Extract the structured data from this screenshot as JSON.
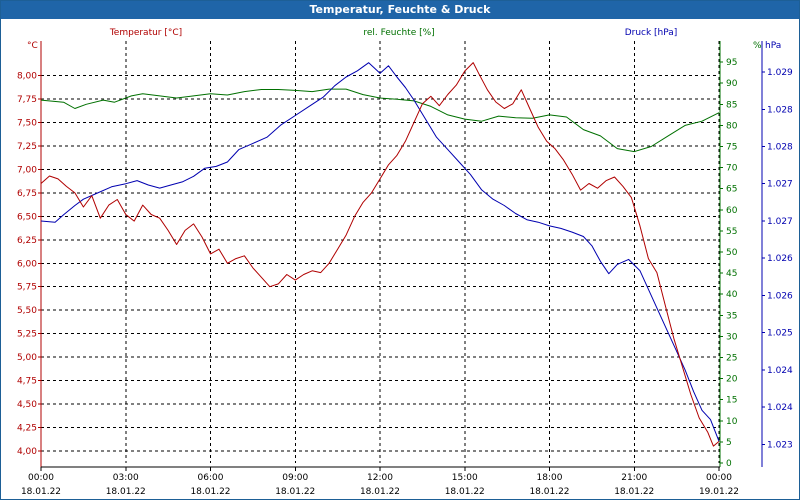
{
  "window": {
    "title": "Temperatur, Feuchte & Druck"
  },
  "colors": {
    "temperature": "#b00000",
    "humidity": "#007000",
    "pressure": "#0000b0",
    "titlebar": "#1f65a8"
  },
  "chart_data": {
    "type": "line",
    "title": "Temperatur, Feuchte & Druck",
    "grid": true,
    "x_axis": {
      "unit": "hours since 18.01.22 00:00",
      "range": [
        0,
        24
      ],
      "ticks": [
        {
          "time": "00:00",
          "date": "18.01.22"
        },
        {
          "time": "03:00",
          "date": "18.01.22"
        },
        {
          "time": "06:00",
          "date": "18.01.22"
        },
        {
          "time": "09:00",
          "date": "18.01.22"
        },
        {
          "time": "12:00",
          "date": "18.01.22"
        },
        {
          "time": "15:00",
          "date": "18.01.22"
        },
        {
          "time": "18:00",
          "date": "18.01.22"
        },
        {
          "time": "21:00",
          "date": "18.01.22"
        },
        {
          "time": "00:00",
          "date": "19.01.22"
        }
      ]
    },
    "axes": {
      "temperature": {
        "label": "Temperatur [°C]",
        "unit": "°C",
        "range": [
          3.87,
          8.37
        ],
        "ticks": [
          "4,00",
          "4,25",
          "4,50",
          "4,75",
          "5,00",
          "5,25",
          "5,50",
          "5,75",
          "6,00",
          "6,25",
          "6,50",
          "6,75",
          "7,00",
          "7,25",
          "7,50",
          "7,75",
          "8,00"
        ],
        "tick_values": [
          4.0,
          4.25,
          4.5,
          4.75,
          5.0,
          5.25,
          5.5,
          5.75,
          6.0,
          6.25,
          6.5,
          6.75,
          7.0,
          7.25,
          7.5,
          7.75,
          8.0
        ]
      },
      "humidity": {
        "label": "rel. Feuchte [%]",
        "unit": "%",
        "range": [
          0,
          100
        ],
        "ticks": [
          "0",
          "5",
          "10",
          "15",
          "20",
          "25",
          "30",
          "35",
          "40",
          "45",
          "50",
          "55",
          "60",
          "65",
          "70",
          "75",
          "80",
          "85",
          "90",
          "95"
        ],
        "tick_values": [
          0,
          5,
          10,
          15,
          20,
          25,
          30,
          35,
          40,
          45,
          50,
          55,
          60,
          65,
          70,
          75,
          80,
          85,
          90,
          95
        ]
      },
      "pressure": {
        "label": "Druck [hPa]",
        "unit": "hPa",
        "range": [
          1022.7,
          1029.5
        ],
        "ticks": [
          "1.023",
          "1.024",
          "1.024",
          "1.025",
          "1.026",
          "1.026",
          "1.027",
          "1.027",
          "1.028",
          "1.028",
          "1.029"
        ],
        "tick_values": [
          1023.0,
          1023.6,
          1024.2,
          1024.8,
          1025.4,
          1026.0,
          1026.6,
          1027.2,
          1027.8,
          1028.4,
          1029.0
        ]
      }
    },
    "series": [
      {
        "name": "Temperatur [°C]",
        "axis": "temperature",
        "points": [
          [
            0,
            6.85
          ],
          [
            0.3,
            6.93
          ],
          [
            0.6,
            6.9
          ],
          [
            0.9,
            6.82
          ],
          [
            1.2,
            6.75
          ],
          [
            1.5,
            6.6
          ],
          [
            1.8,
            6.72
          ],
          [
            2.1,
            6.48
          ],
          [
            2.4,
            6.62
          ],
          [
            2.7,
            6.68
          ],
          [
            3.0,
            6.52
          ],
          [
            3.3,
            6.45
          ],
          [
            3.6,
            6.62
          ],
          [
            3.9,
            6.52
          ],
          [
            4.2,
            6.48
          ],
          [
            4.5,
            6.35
          ],
          [
            4.8,
            6.2
          ],
          [
            5.1,
            6.35
          ],
          [
            5.4,
            6.42
          ],
          [
            5.7,
            6.28
          ],
          [
            6.0,
            6.1
          ],
          [
            6.3,
            6.15
          ],
          [
            6.6,
            6.0
          ],
          [
            6.9,
            6.05
          ],
          [
            7.2,
            6.08
          ],
          [
            7.5,
            5.95
          ],
          [
            7.8,
            5.85
          ],
          [
            8.1,
            5.75
          ],
          [
            8.4,
            5.78
          ],
          [
            8.7,
            5.88
          ],
          [
            9.0,
            5.82
          ],
          [
            9.3,
            5.88
          ],
          [
            9.6,
            5.92
          ],
          [
            9.9,
            5.9
          ],
          [
            10.2,
            6.0
          ],
          [
            10.5,
            6.15
          ],
          [
            10.8,
            6.3
          ],
          [
            11.1,
            6.5
          ],
          [
            11.4,
            6.65
          ],
          [
            11.7,
            6.75
          ],
          [
            12.0,
            6.9
          ],
          [
            12.3,
            7.05
          ],
          [
            12.6,
            7.15
          ],
          [
            12.9,
            7.3
          ],
          [
            13.2,
            7.5
          ],
          [
            13.5,
            7.7
          ],
          [
            13.8,
            7.78
          ],
          [
            14.1,
            7.68
          ],
          [
            14.4,
            7.8
          ],
          [
            14.7,
            7.9
          ],
          [
            15.0,
            8.05
          ],
          [
            15.3,
            8.14
          ],
          [
            15.5,
            8.02
          ],
          [
            15.8,
            7.85
          ],
          [
            16.1,
            7.72
          ],
          [
            16.4,
            7.65
          ],
          [
            16.7,
            7.7
          ],
          [
            17.0,
            7.85
          ],
          [
            17.3,
            7.65
          ],
          [
            17.6,
            7.45
          ],
          [
            17.9,
            7.3
          ],
          [
            18.2,
            7.22
          ],
          [
            18.5,
            7.1
          ],
          [
            18.8,
            6.95
          ],
          [
            19.1,
            6.78
          ],
          [
            19.4,
            6.85
          ],
          [
            19.7,
            6.8
          ],
          [
            20.0,
            6.88
          ],
          [
            20.3,
            6.92
          ],
          [
            20.6,
            6.82
          ],
          [
            20.9,
            6.7
          ],
          [
            21.2,
            6.4
          ],
          [
            21.5,
            6.05
          ],
          [
            21.8,
            5.9
          ],
          [
            22.1,
            5.55
          ],
          [
            22.4,
            5.2
          ],
          [
            22.7,
            4.9
          ],
          [
            23.0,
            4.6
          ],
          [
            23.3,
            4.35
          ],
          [
            23.6,
            4.2
          ],
          [
            23.8,
            4.05
          ],
          [
            24.0,
            4.1
          ]
        ]
      },
      {
        "name": "rel. Feuchte [%]",
        "axis": "humidity",
        "points": [
          [
            0,
            86
          ],
          [
            0.8,
            85.5
          ],
          [
            1.2,
            84
          ],
          [
            1.6,
            85
          ],
          [
            2.2,
            86
          ],
          [
            2.6,
            85.5
          ],
          [
            3.2,
            87
          ],
          [
            3.6,
            87.5
          ],
          [
            4.2,
            87
          ],
          [
            4.8,
            86.5
          ],
          [
            5.4,
            87
          ],
          [
            6.0,
            87.5
          ],
          [
            6.6,
            87.2
          ],
          [
            7.2,
            88
          ],
          [
            7.8,
            88.5
          ],
          [
            8.4,
            88.5
          ],
          [
            9.0,
            88.3
          ],
          [
            9.6,
            88
          ],
          [
            10.2,
            88.6
          ],
          [
            10.8,
            88.6
          ],
          [
            11.4,
            87.3
          ],
          [
            12.0,
            86.5
          ],
          [
            12.6,
            86.2
          ],
          [
            13.2,
            85.8
          ],
          [
            13.8,
            84.5
          ],
          [
            14.4,
            82.5
          ],
          [
            15.0,
            81.5
          ],
          [
            15.6,
            81
          ],
          [
            16.2,
            82.2
          ],
          [
            16.8,
            81.8
          ],
          [
            17.4,
            81.7
          ],
          [
            18.0,
            82.5
          ],
          [
            18.6,
            82
          ],
          [
            19.2,
            79
          ],
          [
            19.8,
            77.5
          ],
          [
            20.4,
            74.5
          ],
          [
            21.0,
            73.8
          ],
          [
            21.6,
            75
          ],
          [
            22.2,
            77.5
          ],
          [
            22.8,
            80
          ],
          [
            23.4,
            81
          ],
          [
            24.0,
            83
          ]
        ]
      },
      {
        "name": "Druck [hPa]",
        "axis": "pressure",
        "points": [
          [
            0,
            1026.6
          ],
          [
            0.5,
            1026.58
          ],
          [
            0.8,
            1026.7
          ],
          [
            1.2,
            1026.85
          ],
          [
            1.5,
            1026.95
          ],
          [
            2.0,
            1027.05
          ],
          [
            2.5,
            1027.15
          ],
          [
            3.0,
            1027.2
          ],
          [
            3.4,
            1027.25
          ],
          [
            3.8,
            1027.18
          ],
          [
            4.2,
            1027.13
          ],
          [
            4.6,
            1027.18
          ],
          [
            5.0,
            1027.23
          ],
          [
            5.4,
            1027.32
          ],
          [
            5.8,
            1027.45
          ],
          [
            6.2,
            1027.48
          ],
          [
            6.6,
            1027.55
          ],
          [
            7.0,
            1027.75
          ],
          [
            7.5,
            1027.85
          ],
          [
            8.0,
            1027.95
          ],
          [
            8.5,
            1028.15
          ],
          [
            9.0,
            1028.3
          ],
          [
            9.5,
            1028.45
          ],
          [
            10.0,
            1028.6
          ],
          [
            10.4,
            1028.78
          ],
          [
            10.8,
            1028.92
          ],
          [
            11.2,
            1029.02
          ],
          [
            11.6,
            1029.15
          ],
          [
            12.0,
            1028.98
          ],
          [
            12.3,
            1029.1
          ],
          [
            12.6,
            1028.92
          ],
          [
            12.9,
            1028.75
          ],
          [
            13.2,
            1028.55
          ],
          [
            13.6,
            1028.25
          ],
          [
            14.0,
            1027.95
          ],
          [
            14.4,
            1027.75
          ],
          [
            14.8,
            1027.55
          ],
          [
            15.2,
            1027.35
          ],
          [
            15.6,
            1027.1
          ],
          [
            16.0,
            1026.95
          ],
          [
            16.4,
            1026.85
          ],
          [
            16.8,
            1026.72
          ],
          [
            17.2,
            1026.62
          ],
          [
            17.6,
            1026.58
          ],
          [
            18.0,
            1026.52
          ],
          [
            18.4,
            1026.48
          ],
          [
            18.8,
            1026.42
          ],
          [
            19.2,
            1026.35
          ],
          [
            19.5,
            1026.2
          ],
          [
            19.8,
            1025.95
          ],
          [
            20.1,
            1025.75
          ],
          [
            20.4,
            1025.9
          ],
          [
            20.8,
            1025.98
          ],
          [
            21.2,
            1025.8
          ],
          [
            21.6,
            1025.4
          ],
          [
            22.0,
            1025.0
          ],
          [
            22.4,
            1024.6
          ],
          [
            22.8,
            1024.2
          ],
          [
            23.1,
            1023.85
          ],
          [
            23.4,
            1023.55
          ],
          [
            23.7,
            1023.4
          ],
          [
            24.0,
            1023.05
          ]
        ]
      }
    ]
  }
}
